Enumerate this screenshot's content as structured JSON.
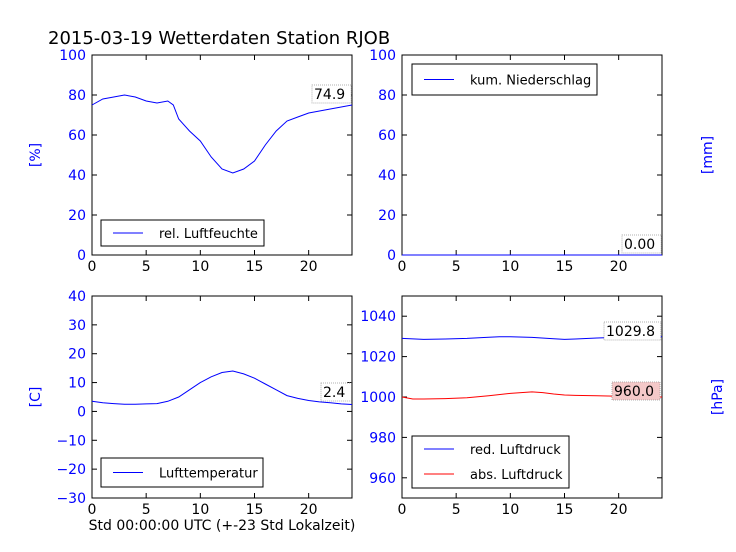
{
  "title": "2015-03-19 Wetterdaten Station RJOB",
  "footer_xlabel": "Std 00:00:00 UTC (+-23 Std Lokalzeit)",
  "colors": {
    "series_blue": "#0000ff",
    "series_red": "#ff0000",
    "annot_red_bg": "#f4c8c8"
  },
  "chart_data": [
    {
      "type": "line",
      "panel": "top-left",
      "ylabel": "[%]",
      "xlim": [
        0,
        24
      ],
      "ylim": [
        0,
        100
      ],
      "xticks": [
        0,
        5,
        10,
        15,
        20
      ],
      "yticks": [
        0,
        20,
        40,
        60,
        80,
        100
      ],
      "legend": "lower-left",
      "annotation": "74.9",
      "series": [
        {
          "name": "rel. Luftfeuchte",
          "color": "#0000ff",
          "x": [
            0,
            1,
            2,
            3,
            4,
            5,
            6,
            7,
            7.5,
            8,
            9,
            10,
            11,
            12,
            13,
            14,
            15,
            16,
            17,
            18,
            19,
            20,
            21,
            22,
            23,
            24
          ],
          "y": [
            75,
            78,
            79,
            80,
            79,
            77,
            76,
            77,
            75,
            68,
            62,
            57,
            49,
            43,
            41,
            43,
            47,
            55,
            62,
            67,
            69,
            71,
            72,
            73,
            74,
            75
          ]
        }
      ]
    },
    {
      "type": "line",
      "panel": "top-right",
      "ylabel": "[mm]",
      "xlim": [
        0,
        24
      ],
      "ylim": [
        0,
        100
      ],
      "xticks": [
        0,
        5,
        10,
        15,
        20
      ],
      "yticks": [
        0,
        20,
        40,
        60,
        80,
        100
      ],
      "legend": "upper-left",
      "annotation": "0.00",
      "series": [
        {
          "name": "kum. Niederschlag",
          "color": "#0000ff",
          "x": [
            0,
            24
          ],
          "y": [
            0,
            0
          ]
        }
      ]
    },
    {
      "type": "line",
      "panel": "bottom-left",
      "ylabel": "[C]",
      "xlim": [
        0,
        24
      ],
      "ylim": [
        -30,
        40
      ],
      "xticks": [
        0,
        5,
        10,
        15,
        20
      ],
      "yticks": [
        -30,
        -20,
        -10,
        0,
        10,
        20,
        30,
        40
      ],
      "legend": "lower-left",
      "annotation": "2.4",
      "series": [
        {
          "name": "Lufttemperatur",
          "color": "#0000ff",
          "x": [
            0,
            1,
            2,
            3,
            4,
            5,
            6,
            7,
            8,
            9,
            10,
            11,
            12,
            13,
            14,
            15,
            16,
            17,
            18,
            19,
            20,
            21,
            22,
            23,
            24
          ],
          "y": [
            3.5,
            3,
            2.7,
            2.5,
            2.5,
            2.6,
            2.7,
            3.5,
            5,
            7.5,
            10,
            12,
            13.5,
            14,
            13,
            11.5,
            9.5,
            7.5,
            5.5,
            4.5,
            3.8,
            3.3,
            3,
            2.6,
            2.4
          ]
        }
      ]
    },
    {
      "type": "line",
      "panel": "bottom-right",
      "ylabel": "[hPa]",
      "xlim": [
        0,
        24
      ],
      "ylim": [
        950,
        1050
      ],
      "ylim_right": [
        910,
        1010
      ],
      "xticks": [
        0,
        5,
        10,
        15,
        20
      ],
      "yticks": [
        960,
        980,
        1000,
        1020,
        1040
      ],
      "yticks_right": [
        920,
        940,
        960,
        980,
        1000
      ],
      "legend": "lower-left",
      "series": [
        {
          "name": "red. Luftdruck",
          "color": "#0000ff",
          "axis": "left",
          "annotation": "1029.8",
          "x": [
            0,
            2,
            4,
            6,
            8,
            9,
            10,
            12,
            14,
            15,
            16,
            18,
            20,
            22,
            24
          ],
          "y": [
            1029,
            1028.5,
            1028.7,
            1029,
            1029.6,
            1029.8,
            1029.8,
            1029.5,
            1028.8,
            1028.5,
            1028.7,
            1029.2,
            1029.6,
            1029.8,
            1029.8
          ]
        },
        {
          "name": "abs. Luftdruck",
          "color": "#ff0000",
          "axis": "right",
          "annotation": "960.0",
          "x": [
            0,
            1,
            2,
            4,
            6,
            8,
            10,
            12,
            13,
            14,
            15,
            16,
            18,
            20,
            22,
            24
          ],
          "y": [
            960,
            959,
            959,
            959.2,
            959.6,
            960.6,
            961.8,
            962.5,
            962.2,
            961.5,
            961,
            960.8,
            960.6,
            960.4,
            960.2,
            960
          ]
        }
      ]
    }
  ]
}
